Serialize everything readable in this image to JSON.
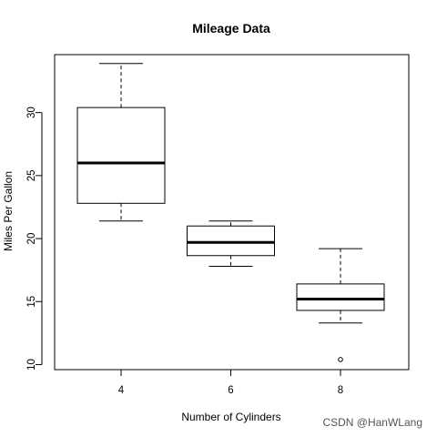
{
  "chart_data": {
    "type": "box",
    "title": "Mileage Data",
    "xlabel": "Number of Cylinders",
    "ylabel": "Miles Per Gallon",
    "categories": [
      "4",
      "6",
      "8"
    ],
    "ylim": [
      9.6,
      34.6
    ],
    "yticks": [
      10,
      15,
      20,
      25,
      30
    ],
    "grid": false,
    "boxes": [
      {
        "category": "4",
        "whisker_low": 21.4,
        "q1": 22.8,
        "median": 26.0,
        "q3": 30.4,
        "whisker_high": 33.9,
        "outliers": []
      },
      {
        "category": "6",
        "whisker_low": 17.8,
        "q1": 18.65,
        "median": 19.7,
        "q3": 21.0,
        "whisker_high": 21.4,
        "outliers": []
      },
      {
        "category": "8",
        "whisker_low": 13.3,
        "q1": 14.3,
        "median": 15.2,
        "q3": 16.4,
        "whisker_high": 19.2,
        "outliers": [
          10.4
        ]
      }
    ]
  },
  "watermark": "CSDN @HanWLang"
}
